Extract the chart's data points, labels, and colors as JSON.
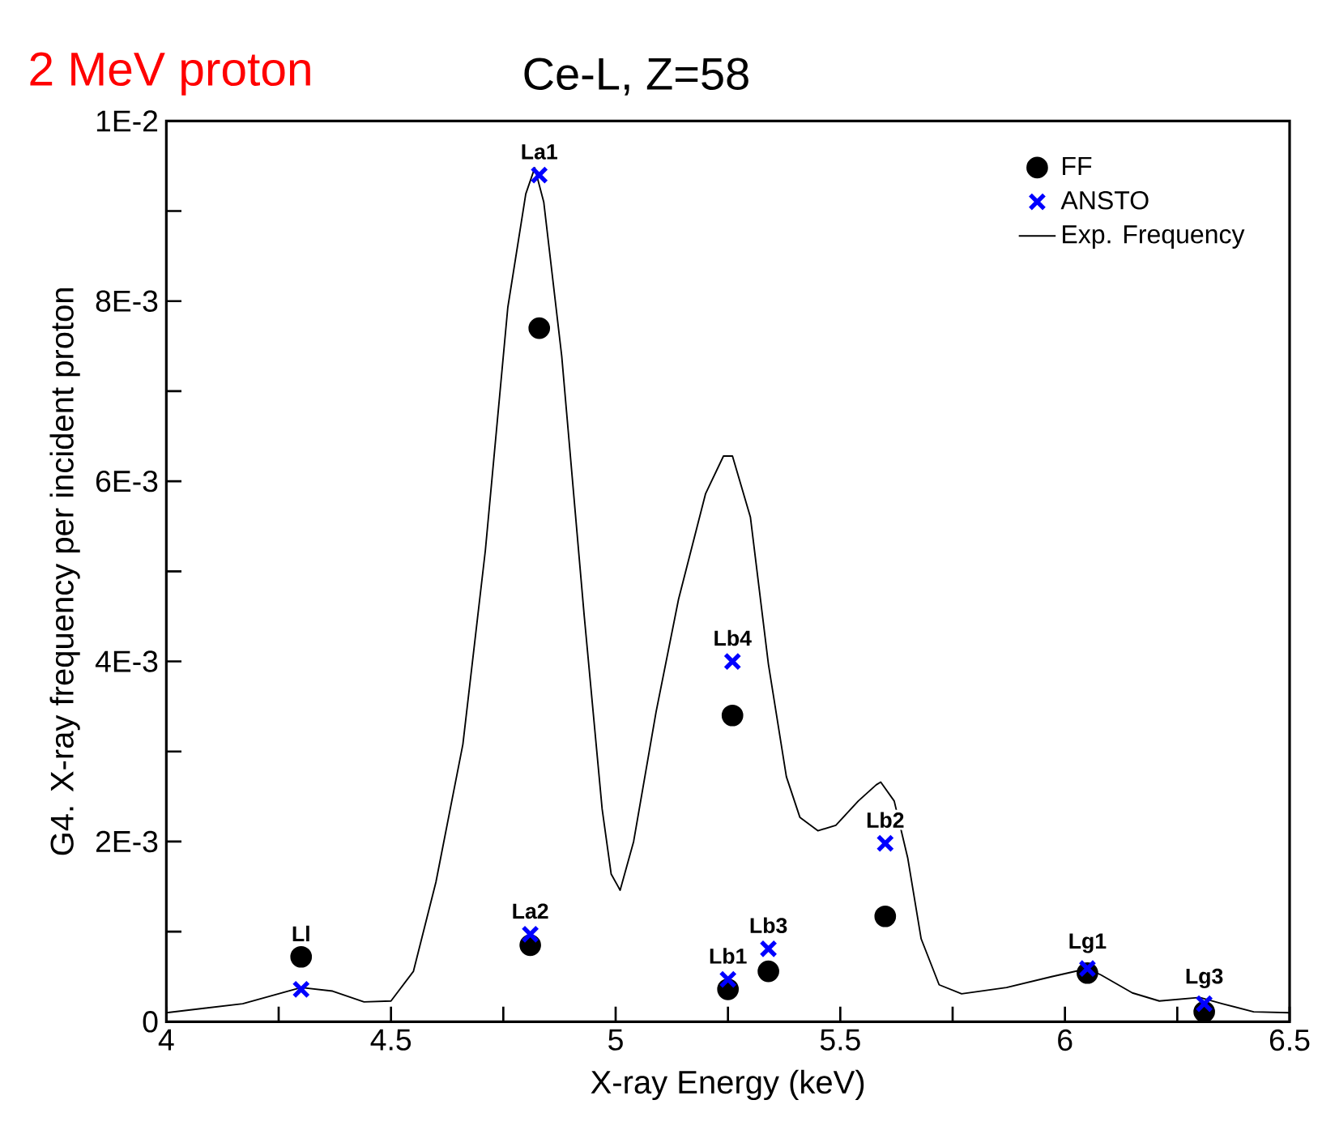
{
  "chart_data": {
    "type": "scatter",
    "title": "2 MeV proton",
    "subtitle": "Ce-L, Z=58",
    "xlabel": "X-ray Energy (keV)",
    "ylabel": "G4. X-ray frequency per incident proton",
    "xlim": [
      4,
      6.5
    ],
    "ylim": [
      0,
      0.01
    ],
    "xticks": [
      4,
      {
        "value": 4.25,
        "label": null
      },
      4.5,
      {
        "value": 4.75,
        "label": null
      },
      5,
      {
        "value": 5.25,
        "label": null
      },
      5.5,
      {
        "value": 5.75,
        "label": null
      },
      6,
      {
        "value": 6.25,
        "label": null
      },
      6.5
    ],
    "yticks": [
      0,
      {
        "value": 0.001,
        "label": null
      },
      {
        "value": 0.002,
        "label": "2E-3"
      },
      {
        "value": 0.003,
        "label": null
      },
      {
        "value": 0.004,
        "label": "4E-3"
      },
      {
        "value": 0.005,
        "label": null
      },
      {
        "value": 0.006,
        "label": "6E-3"
      },
      {
        "value": 0.007,
        "label": null
      },
      {
        "value": 0.008,
        "label": "8E-3"
      },
      {
        "value": 0.009,
        "label": null
      },
      {
        "value": 0.01,
        "label": "1E-2"
      }
    ],
    "x": [
      4.3,
      4.83,
      4.81,
      5.26,
      5.25,
      5.34,
      5.6,
      6.05,
      6.31
    ],
    "legend": "top right",
    "grid": false,
    "series": [
      {
        "name": "FF",
        "marker": "circle",
        "color": "#000000",
        "values": [
          0.00072,
          0.0077,
          0.00085,
          0.0034,
          0.00036,
          0.00056,
          0.00117,
          0.00054,
          0.00011
        ]
      },
      {
        "name": "ANSTO",
        "marker": "cross",
        "color": "#0000ff",
        "values": [
          0.00036,
          0.0094,
          0.00097,
          0.004,
          0.00047,
          0.00081,
          0.00198,
          0.00059,
          0.0002
        ]
      },
      {
        "name": "Exp. Frequency",
        "type": "line",
        "marker": "none",
        "line_style": "solid",
        "color": "#000000",
        "x": [
          4.0,
          4.17,
          4.3,
          4.37,
          4.44,
          4.5,
          4.55,
          4.6,
          4.66,
          4.71,
          4.76,
          4.8,
          4.82,
          4.84,
          4.88,
          4.93,
          4.97,
          4.99,
          5.01,
          5.04,
          5.09,
          5.14,
          5.2,
          5.24,
          5.26,
          5.3,
          5.34,
          5.38,
          5.41,
          5.45,
          5.49,
          5.54,
          5.58,
          5.59,
          5.62,
          5.65,
          5.68,
          5.72,
          5.77,
          5.87,
          5.97,
          6.05,
          6.08,
          6.15,
          6.21,
          6.3,
          6.35,
          6.42,
          6.5
        ],
        "values": [
          0.0001,
          0.0002,
          0.00038,
          0.00034,
          0.00022,
          0.00023,
          0.00056,
          0.00155,
          0.00308,
          0.00523,
          0.00793,
          0.00919,
          0.00948,
          0.0091,
          0.00739,
          0.00451,
          0.00236,
          0.00164,
          0.00146,
          0.002,
          0.00344,
          0.00469,
          0.00586,
          0.00628,
          0.00628,
          0.0056,
          0.00397,
          0.00272,
          0.00227,
          0.00212,
          0.00218,
          0.00245,
          0.00263,
          0.00266,
          0.00245,
          0.00182,
          0.00092,
          0.00041,
          0.00031,
          0.00038,
          0.0005,
          0.00059,
          0.00052,
          0.00032,
          0.00023,
          0.00027,
          0.0002,
          0.00011,
          0.0001
        ]
      }
    ],
    "annotations": [
      {
        "text": "Ll",
        "x": 4.3,
        "y": 0.00072
      },
      {
        "text": "La1",
        "x": 4.83,
        "y": 0.0094
      },
      {
        "text": "La2",
        "x": 4.81,
        "y": 0.00097
      },
      {
        "text": "Lb4",
        "x": 5.26,
        "y": 0.004
      },
      {
        "text": "Lb1",
        "x": 5.25,
        "y": 0.00047
      },
      {
        "text": "Lb3",
        "x": 5.34,
        "y": 0.00081
      },
      {
        "text": "Lb2",
        "x": 5.6,
        "y": 0.00198
      },
      {
        "text": "Lg1",
        "x": 6.05,
        "y": 0.00059
      },
      {
        "text": "Lg3",
        "x": 6.31,
        "y": 0.0002
      }
    ]
  }
}
